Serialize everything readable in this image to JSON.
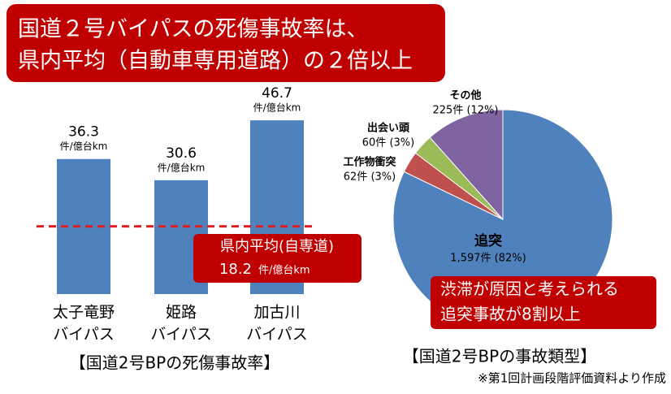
{
  "banner": [
    "国道２号バイパスの死傷事故率は、",
    "県内平均（自動車専用道路）の２倍以上"
  ],
  "chart_data": [
    {
      "type": "bar",
      "title": "【国道2号BPの死傷事故率】",
      "categories": [
        [
          "太子竜野",
          "バイパス"
        ],
        [
          "姫路",
          "バイパス"
        ],
        [
          "加古川",
          "バイパス"
        ]
      ],
      "values": [
        36.3,
        30.6,
        46.7
      ],
      "unit": "件/億台km",
      "color": "#4f81bd",
      "reference": {
        "label": "県内平均(自専道)",
        "value": 18.2,
        "unit": "件/億台km",
        "color": "#e02020"
      }
    },
    {
      "type": "pie",
      "title": "【国道2号BPの事故類型】",
      "categories": [
        "追突",
        "工作物衝突",
        "出会い頭",
        "その他"
      ],
      "values": [
        1597,
        62,
        60,
        225
      ],
      "value_labels": [
        "1,597件 (82%)",
        "62件 (3%)",
        "60件 (3%)",
        "225件 (12%)"
      ],
      "colors": [
        "#4f81bd",
        "#c0504d",
        "#9bbb59",
        "#8064a2"
      ]
    }
  ],
  "callout": [
    "渋滞が原因と考えられる",
    "追突事故が8割以上"
  ],
  "source": "※第1回計画段階評価資料より作成"
}
